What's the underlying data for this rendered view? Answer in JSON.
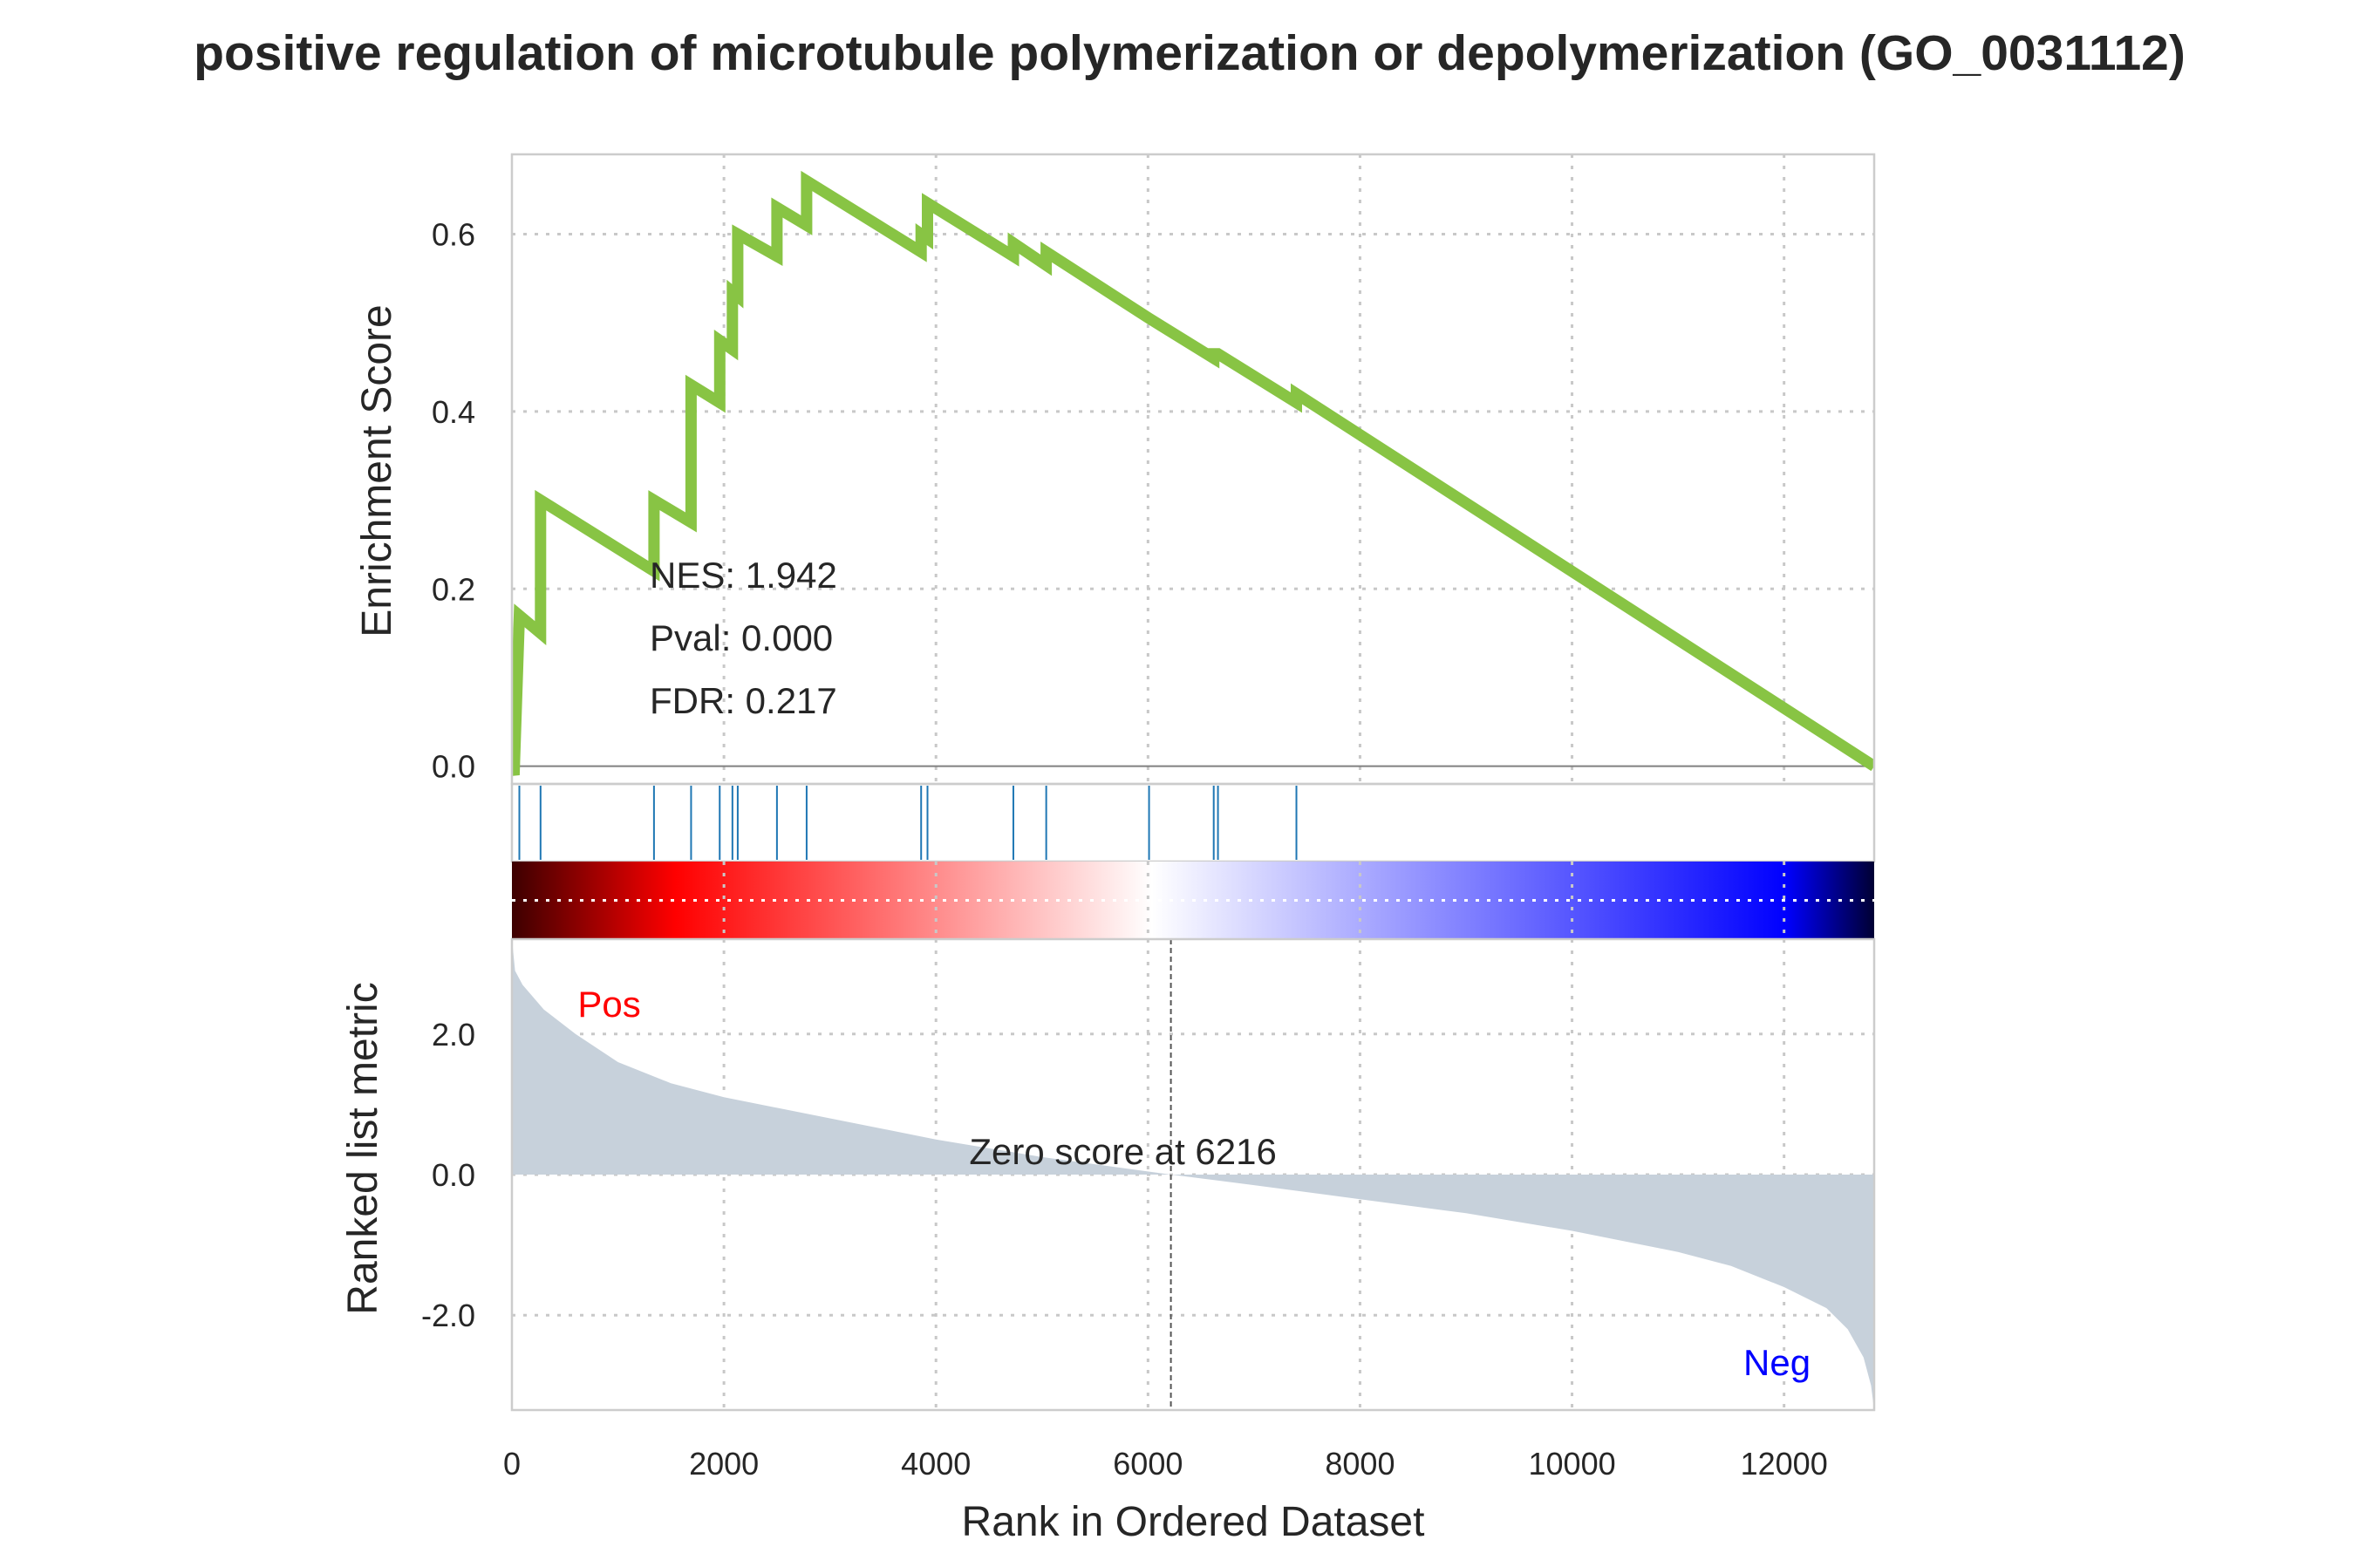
{
  "title": "positive regulation of microtubule polymerization or depolymerization (GO_0031112)",
  "colors": {
    "es_line": "#88c444",
    "hit_line": "#1f77b4",
    "metric_fill": "#c7d1db",
    "pos_label": "#ff0000",
    "neg_label": "#0000ff",
    "heatmap_stops": [
      "#3d0000",
      "#ff0000",
      "#ffffff",
      "#0000ff",
      "#000033"
    ]
  },
  "chart_data": {
    "type": "line",
    "xlabel": "Rank in Ordered Dataset",
    "xlim": [
      0,
      12850
    ],
    "x_ticks": [
      0,
      2000,
      4000,
      6000,
      8000,
      10000,
      12000
    ],
    "enrichment": {
      "ylabel": "Enrichment Score",
      "ylim": [
        -0.02,
        0.69
      ],
      "y_ticks": [
        0.0,
        0.2,
        0.4,
        0.6
      ],
      "y_tick_labels": [
        "0.0",
        "0.2",
        "0.4",
        "0.6"
      ],
      "es_curve": [
        [
          0,
          0.0
        ],
        [
          20,
          -0.01
        ],
        [
          70,
          0.17
        ],
        [
          270,
          0.15
        ],
        [
          270,
          0.3
        ],
        [
          1340,
          0.22
        ],
        [
          1340,
          0.3
        ],
        [
          1690,
          0.275
        ],
        [
          1690,
          0.43
        ],
        [
          1960,
          0.41
        ],
        [
          1960,
          0.48
        ],
        [
          2080,
          0.47
        ],
        [
          2080,
          0.535
        ],
        [
          2130,
          0.53
        ],
        [
          2130,
          0.6
        ],
        [
          2500,
          0.575
        ],
        [
          2500,
          0.63
        ],
        [
          2780,
          0.61
        ],
        [
          2780,
          0.66
        ],
        [
          3860,
          0.58
        ],
        [
          3860,
          0.6
        ],
        [
          3920,
          0.595
        ],
        [
          3920,
          0.635
        ],
        [
          4730,
          0.575
        ],
        [
          4730,
          0.59
        ],
        [
          5040,
          0.565
        ],
        [
          5040,
          0.58
        ],
        [
          6010,
          0.505
        ],
        [
          6620,
          0.46
        ],
        [
          6620,
          0.465
        ],
        [
          6660,
          0.465
        ],
        [
          7400,
          0.41
        ],
        [
          7400,
          0.42
        ],
        [
          12850,
          0.0
        ]
      ],
      "hits": [
        70,
        270,
        1340,
        1690,
        1960,
        2080,
        2130,
        2500,
        2780,
        3860,
        3920,
        4730,
        5040,
        6010,
        6620,
        6660,
        7400
      ],
      "stats": {
        "nes": "NES: 1.942",
        "pval": "Pval: 0.000",
        "fdr": "FDR: 0.217"
      }
    },
    "ranked_metric": {
      "ylabel": "Ranked list metric",
      "ylim": [
        -3.35,
        3.35
      ],
      "y_ticks": [
        2.0,
        0.0,
        -2.0
      ],
      "y_tick_labels": [
        "2.0",
        "0.0",
        "-2.0"
      ],
      "curve": [
        [
          0,
          3.35
        ],
        [
          30,
          2.9
        ],
        [
          100,
          2.7
        ],
        [
          300,
          2.35
        ],
        [
          600,
          2.0
        ],
        [
          1000,
          1.6
        ],
        [
          1500,
          1.3
        ],
        [
          2000,
          1.1
        ],
        [
          3000,
          0.8
        ],
        [
          4000,
          0.5
        ],
        [
          5000,
          0.25
        ],
        [
          6216,
          0.0
        ],
        [
          7000,
          -0.15
        ],
        [
          8000,
          -0.35
        ],
        [
          9000,
          -0.55
        ],
        [
          10000,
          -0.8
        ],
        [
          11000,
          -1.1
        ],
        [
          11500,
          -1.3
        ],
        [
          12000,
          -1.6
        ],
        [
          12400,
          -1.9
        ],
        [
          12600,
          -2.2
        ],
        [
          12750,
          -2.6
        ],
        [
          12820,
          -3.0
        ],
        [
          12850,
          -3.35
        ]
      ],
      "zero_score_rank": 6216,
      "zero_label": "Zero score at 6216",
      "pos_label": "Pos",
      "neg_label": "Neg"
    }
  }
}
